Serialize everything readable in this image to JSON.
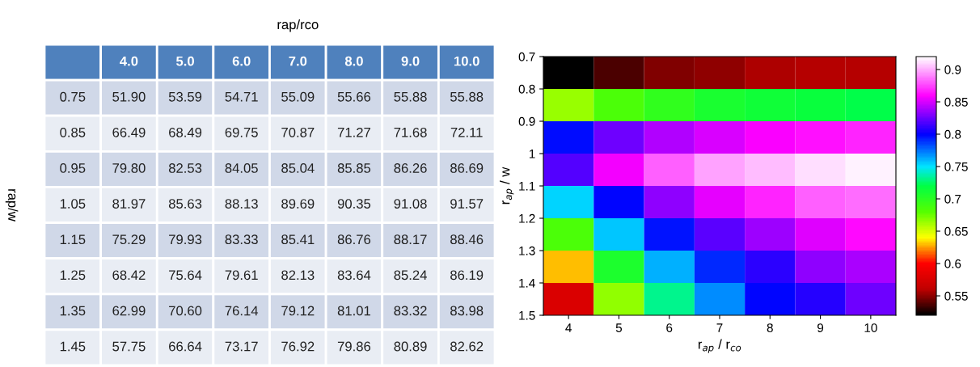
{
  "chart_data": [
    {
      "type": "heatmap",
      "xlabel": "rap/rco",
      "ylabel": "rap/w",
      "categories": [
        "4.0",
        "5.0",
        "6.0",
        "7.0",
        "8.0",
        "9.0",
        "10.0"
      ],
      "y_categories": [
        "0.75",
        "0.85",
        "0.95",
        "1.05",
        "1.15",
        "1.25",
        "1.35",
        "1.45"
      ],
      "cells": [
        [
          51.9,
          53.59,
          54.71,
          55.09,
          55.66,
          55.88,
          55.88
        ],
        [
          66.49,
          68.49,
          69.75,
          70.87,
          71.27,
          71.68,
          72.11
        ],
        [
          79.8,
          82.53,
          84.05,
          85.04,
          85.85,
          86.26,
          86.69
        ],
        [
          81.97,
          85.63,
          88.13,
          89.69,
          90.35,
          91.08,
          91.57
        ],
        [
          75.29,
          79.93,
          83.33,
          85.41,
          86.76,
          88.17,
          88.46
        ],
        [
          68.42,
          75.64,
          79.61,
          82.13,
          83.64,
          85.24,
          86.19
        ],
        [
          62.99,
          70.6,
          76.14,
          79.12,
          81.01,
          83.32,
          83.98
        ],
        [
          57.75,
          66.64,
          73.17,
          76.92,
          79.86,
          80.89,
          82.62
        ]
      ],
      "cell_labels": [
        [
          "51.90",
          "53.59",
          "54.71",
          "55.09",
          "55.66",
          "55.88",
          "55.88"
        ],
        [
          "66.49",
          "68.49",
          "69.75",
          "70.87",
          "71.27",
          "71.68",
          "72.11"
        ],
        [
          "79.80",
          "82.53",
          "84.05",
          "85.04",
          "85.85",
          "86.26",
          "86.69"
        ],
        [
          "81.97",
          "85.63",
          "88.13",
          "89.69",
          "90.35",
          "91.08",
          "91.57"
        ],
        [
          "75.29",
          "79.93",
          "83.33",
          "85.41",
          "86.76",
          "88.17",
          "88.46"
        ],
        [
          "68.42",
          "75.64",
          "79.61",
          "82.13",
          "83.64",
          "85.24",
          "86.19"
        ],
        [
          "62.99",
          "70.60",
          "76.14",
          "79.12",
          "81.01",
          "83.32",
          "83.98"
        ],
        [
          "57.75",
          "66.64",
          "73.17",
          "76.92",
          "79.86",
          "80.89",
          "82.62"
        ]
      ]
    },
    {
      "type": "heatmap",
      "xlabel": "r$_{ap}$ / r$_{co}$",
      "ylabel": "r$_{ap}$ / w",
      "xlim": [
        3.5,
        10.5
      ],
      "xticks": [
        4,
        5,
        6,
        7,
        8,
        9,
        10
      ],
      "ylim": [
        1.5,
        0.7
      ],
      "yticks": [
        0.7,
        0.8,
        0.9,
        1,
        1.1,
        1.2,
        1.3,
        1.4,
        1.5
      ],
      "clim": [
        0.52,
        0.92
      ],
      "cticks": [
        0.55,
        0.6,
        0.65,
        0.7,
        0.75,
        0.8,
        0.85,
        0.9
      ],
      "cells": [
        [
          0.519,
          0.5359,
          0.5471,
          0.5509,
          0.5566,
          0.5588,
          0.5588
        ],
        [
          0.6649,
          0.6849,
          0.6975,
          0.7087,
          0.7127,
          0.7168,
          0.7211
        ],
        [
          0.798,
          0.8253,
          0.8405,
          0.8504,
          0.8585,
          0.8626,
          0.8669
        ],
        [
          0.8197,
          0.8563,
          0.8813,
          0.8969,
          0.9035,
          0.9108,
          0.9157
        ],
        [
          0.7529,
          0.7993,
          0.8333,
          0.8541,
          0.8676,
          0.8817,
          0.8846
        ],
        [
          0.6842,
          0.7564,
          0.7961,
          0.8213,
          0.8364,
          0.8524,
          0.8619
        ],
        [
          0.6299,
          0.706,
          0.7614,
          0.7912,
          0.8101,
          0.8332,
          0.8398
        ],
        [
          0.5775,
          0.6664,
          0.7317,
          0.7692,
          0.7986,
          0.8089,
          0.8262
        ]
      ]
    }
  ]
}
